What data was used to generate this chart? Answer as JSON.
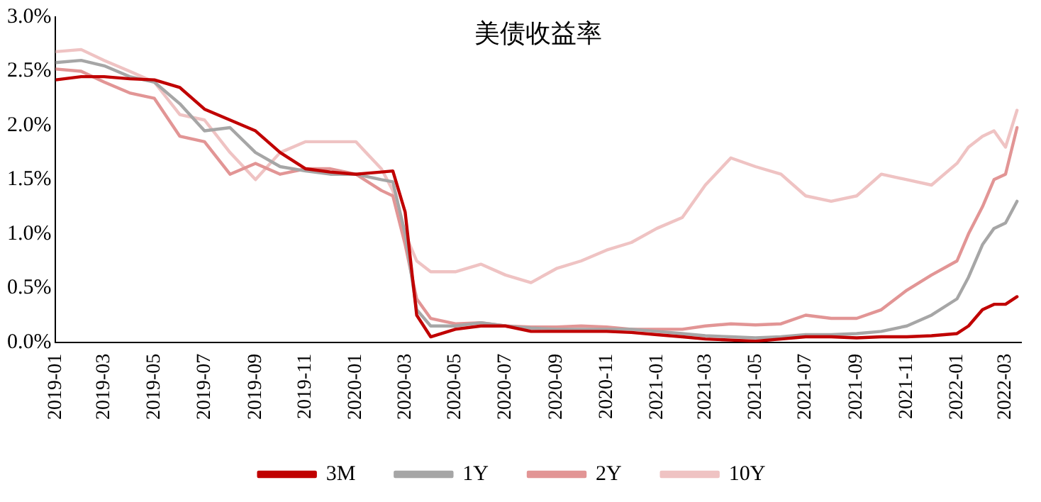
{
  "chart_data": {
    "type": "line",
    "title": "美债收益率",
    "x": [
      "2019-01-01",
      "2019-02-01",
      "2019-03-01",
      "2019-04-01",
      "2019-05-01",
      "2019-06-01",
      "2019-07-01",
      "2019-08-01",
      "2019-09-01",
      "2019-10-01",
      "2019-11-01",
      "2019-12-01",
      "2020-01-01",
      "2020-02-01",
      "2020-02-15",
      "2020-03-01",
      "2020-03-15",
      "2020-04-01",
      "2020-05-01",
      "2020-06-01",
      "2020-07-01",
      "2020-08-01",
      "2020-09-01",
      "2020-10-01",
      "2020-11-01",
      "2020-12-01",
      "2021-01-01",
      "2021-02-01",
      "2021-03-01",
      "2021-04-01",
      "2021-05-01",
      "2021-06-01",
      "2021-07-01",
      "2021-08-01",
      "2021-09-01",
      "2021-10-01",
      "2021-11-01",
      "2021-12-01",
      "2022-01-01",
      "2022-01-15",
      "2022-02-01",
      "2022-02-15",
      "2022-03-01",
      "2022-03-15"
    ],
    "series": [
      {
        "name": "3M",
        "color": "#c00000",
        "values": [
          2.42,
          2.45,
          2.45,
          2.43,
          2.42,
          2.35,
          2.15,
          2.05,
          1.95,
          1.75,
          1.6,
          1.57,
          1.55,
          1.57,
          1.58,
          1.2,
          0.25,
          0.05,
          0.12,
          0.15,
          0.15,
          0.1,
          0.1,
          0.1,
          0.1,
          0.09,
          0.07,
          0.05,
          0.03,
          0.02,
          0.01,
          0.03,
          0.05,
          0.05,
          0.04,
          0.05,
          0.05,
          0.06,
          0.08,
          0.15,
          0.3,
          0.35,
          0.35,
          0.42
        ]
      },
      {
        "name": "1Y",
        "color": "#a6a6a6",
        "values": [
          2.58,
          2.6,
          2.55,
          2.45,
          2.4,
          2.2,
          1.95,
          1.98,
          1.75,
          1.62,
          1.58,
          1.55,
          1.55,
          1.5,
          1.48,
          1.0,
          0.3,
          0.15,
          0.15,
          0.18,
          0.15,
          0.13,
          0.12,
          0.12,
          0.12,
          0.12,
          0.1,
          0.08,
          0.06,
          0.05,
          0.04,
          0.05,
          0.07,
          0.07,
          0.08,
          0.1,
          0.15,
          0.25,
          0.4,
          0.6,
          0.9,
          1.05,
          1.1,
          1.3
        ]
      },
      {
        "name": "2Y",
        "color": "#e29595",
        "values": [
          2.52,
          2.5,
          2.4,
          2.3,
          2.25,
          1.9,
          1.85,
          1.55,
          1.65,
          1.55,
          1.6,
          1.6,
          1.55,
          1.4,
          1.35,
          0.9,
          0.4,
          0.22,
          0.17,
          0.18,
          0.15,
          0.14,
          0.14,
          0.15,
          0.14,
          0.12,
          0.12,
          0.12,
          0.15,
          0.17,
          0.16,
          0.17,
          0.25,
          0.22,
          0.22,
          0.3,
          0.48,
          0.62,
          0.75,
          1.0,
          1.25,
          1.5,
          1.55,
          1.98
        ]
      },
      {
        "name": "10Y",
        "color": "#efc3c3",
        "values": [
          2.68,
          2.7,
          2.6,
          2.5,
          2.4,
          2.1,
          2.05,
          1.75,
          1.5,
          1.75,
          1.85,
          1.85,
          1.85,
          1.6,
          1.4,
          1.0,
          0.75,
          0.65,
          0.65,
          0.72,
          0.62,
          0.55,
          0.68,
          0.75,
          0.85,
          0.92,
          1.05,
          1.15,
          1.45,
          1.7,
          1.62,
          1.55,
          1.35,
          1.3,
          1.35,
          1.55,
          1.5,
          1.45,
          1.65,
          1.8,
          1.9,
          1.95,
          1.8,
          2.14
        ]
      }
    ],
    "xlim": [
      "2019-01-01",
      "2022-03-20"
    ],
    "xticks": [
      "2019-01",
      "2019-03",
      "2019-05",
      "2019-07",
      "2019-09",
      "2019-11",
      "2020-01",
      "2020-03",
      "2020-05",
      "2020-07",
      "2020-09",
      "2020-11",
      "2021-01",
      "2021-03",
      "2021-05",
      "2021-07",
      "2021-09",
      "2021-11",
      "2022-01",
      "2022-03"
    ],
    "ylim": [
      0,
      3
    ],
    "yticks": [
      {
        "value": 0,
        "label": "0.0%"
      },
      {
        "value": 0.5,
        "label": "0.5%"
      },
      {
        "value": 1,
        "label": "1.0%"
      },
      {
        "value": 1.5,
        "label": "1.5%"
      },
      {
        "value": 2,
        "label": "2.0%"
      },
      {
        "value": 2.5,
        "label": "2.5%"
      },
      {
        "value": 3,
        "label": "3.0%"
      }
    ],
    "grid": false,
    "legend": "bottom",
    "marker": "none",
    "line_style": "solid"
  }
}
